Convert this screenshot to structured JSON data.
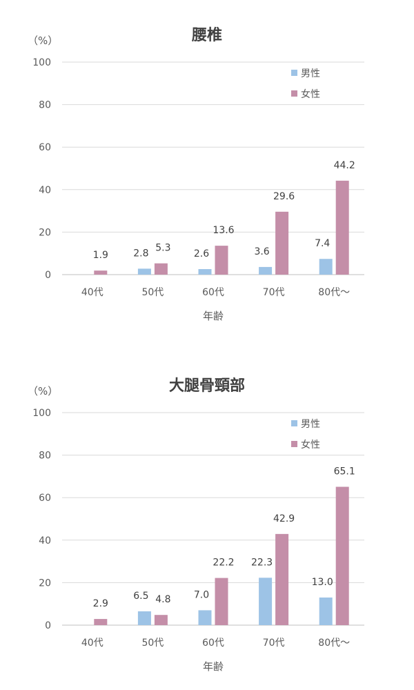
{
  "chart_data": [
    {
      "type": "bar",
      "title": "腰椎",
      "unit_label": "（%）",
      "xlabel": "年齢",
      "ylabel": "",
      "ylim": [
        0,
        100
      ],
      "yticks": [
        "0",
        "20",
        "40",
        "60",
        "80",
        "100"
      ],
      "categories": [
        "40代",
        "50代",
        "60代",
        "70代",
        "80代〜"
      ],
      "series": [
        {
          "name": "男性",
          "color": "#9dc3e6",
          "values": [
            null,
            2.8,
            2.6,
            3.6,
            7.4
          ]
        },
        {
          "name": "女性",
          "color": "#c48ea8",
          "values": [
            1.9,
            5.3,
            13.6,
            29.6,
            44.2
          ]
        }
      ],
      "grid": true,
      "legend": "top-right"
    },
    {
      "type": "bar",
      "title": "大腿骨頸部",
      "unit_label": "（%）",
      "xlabel": "年齢",
      "ylabel": "",
      "ylim": [
        0,
        100
      ],
      "yticks": [
        "0",
        "20",
        "40",
        "60",
        "80",
        "100"
      ],
      "categories": [
        "40代",
        "50代",
        "60代",
        "70代",
        "80代〜"
      ],
      "series": [
        {
          "name": "男性",
          "color": "#9dc3e6",
          "values": [
            null,
            6.5,
            7.0,
            22.3,
            13.0
          ]
        },
        {
          "name": "女性",
          "color": "#c48ea8",
          "values": [
            2.9,
            4.8,
            22.2,
            42.9,
            65.1
          ]
        }
      ],
      "grid": true,
      "legend": "top-right"
    }
  ]
}
